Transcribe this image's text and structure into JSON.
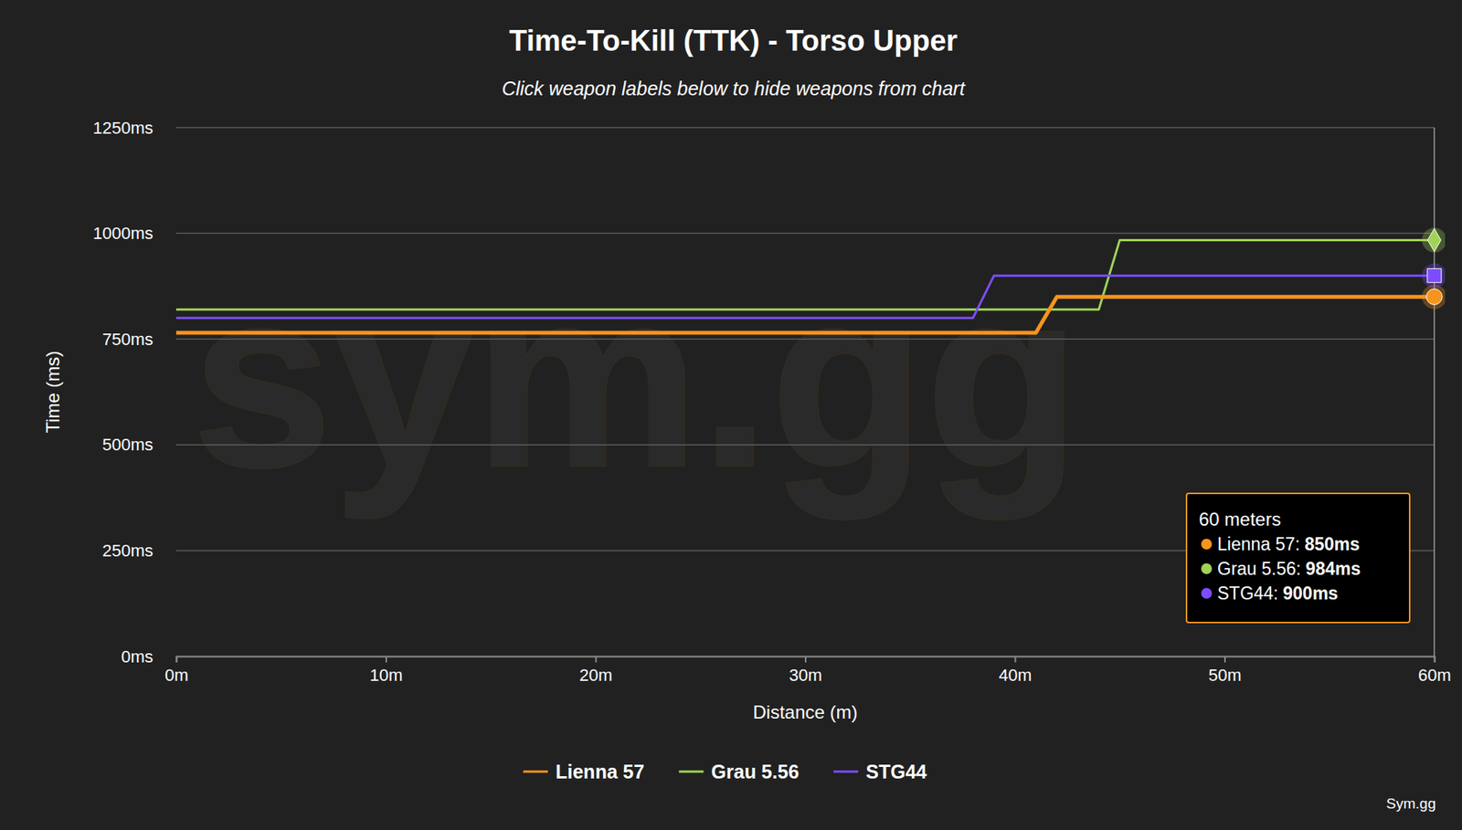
{
  "chart_data": {
    "type": "line",
    "title": "Time-To-Kill (TTK) - Torso Upper",
    "subtitle": "Click weapon labels below to hide weapons from chart",
    "x_label": "Distance (m)",
    "y_label": "Time (ms)",
    "watermark": "sym.gg",
    "credit": "Sym.gg",
    "x": [
      0,
      1,
      2,
      3,
      4,
      5,
      6,
      7,
      8,
      9,
      10,
      11,
      12,
      13,
      14,
      15,
      16,
      17,
      18,
      19,
      20,
      21,
      22,
      23,
      24,
      25,
      26,
      27,
      28,
      29,
      30,
      31,
      32,
      33,
      34,
      35,
      36,
      37,
      38,
      39,
      40,
      41,
      42,
      43,
      44,
      45,
      46,
      47,
      48,
      49,
      50,
      51,
      52,
      53,
      54,
      55,
      56,
      57,
      58,
      59,
      60
    ],
    "series": [
      {
        "name": "Lienna 57",
        "color": "#f7941d",
        "marker": "circle",
        "values": [
          765,
          765,
          765,
          765,
          765,
          765,
          765,
          765,
          765,
          765,
          765,
          765,
          765,
          765,
          765,
          765,
          765,
          765,
          765,
          765,
          765,
          765,
          765,
          765,
          765,
          765,
          765,
          765,
          765,
          765,
          765,
          765,
          765,
          765,
          765,
          765,
          765,
          765,
          765,
          765,
          765,
          765,
          850,
          850,
          850,
          850,
          850,
          850,
          850,
          850,
          850,
          850,
          850,
          850,
          850,
          850,
          850,
          850,
          850,
          850,
          850
        ]
      },
      {
        "name": "Grau 5.56",
        "color": "#9fd356",
        "marker": "diamond",
        "values": [
          820,
          820,
          820,
          820,
          820,
          820,
          820,
          820,
          820,
          820,
          820,
          820,
          820,
          820,
          820,
          820,
          820,
          820,
          820,
          820,
          820,
          820,
          820,
          820,
          820,
          820,
          820,
          820,
          820,
          820,
          820,
          820,
          820,
          820,
          820,
          820,
          820,
          820,
          820,
          820,
          820,
          820,
          820,
          820,
          820,
          984,
          984,
          984,
          984,
          984,
          984,
          984,
          984,
          984,
          984,
          984,
          984,
          984,
          984,
          984,
          984
        ]
      },
      {
        "name": "STG44",
        "color": "#7c4dff",
        "marker": "square",
        "values": [
          800,
          800,
          800,
          800,
          800,
          800,
          800,
          800,
          800,
          800,
          800,
          800,
          800,
          800,
          800,
          800,
          800,
          800,
          800,
          800,
          800,
          800,
          800,
          800,
          800,
          800,
          800,
          800,
          800,
          800,
          800,
          800,
          800,
          800,
          800,
          800,
          800,
          800,
          800,
          900,
          900,
          900,
          900,
          900,
          900,
          900,
          900,
          900,
          900,
          900,
          900,
          900,
          900,
          900,
          900,
          900,
          900,
          900,
          900,
          900,
          900
        ]
      }
    ],
    "xlim": [
      0,
      60
    ],
    "xticks": [
      {
        "value": 0,
        "label": "0m"
      },
      {
        "value": 10,
        "label": "10m"
      },
      {
        "value": 20,
        "label": "20m"
      },
      {
        "value": 30,
        "label": "30m"
      },
      {
        "value": 40,
        "label": "40m"
      },
      {
        "value": 50,
        "label": "50m"
      },
      {
        "value": 60,
        "label": "60m"
      }
    ],
    "ylim": [
      0,
      1250
    ],
    "yticks": [
      {
        "value": 0,
        "label": "0ms"
      },
      {
        "value": 250,
        "label": "250ms"
      },
      {
        "value": 500,
        "label": "500ms"
      },
      {
        "value": 750,
        "label": "750ms"
      },
      {
        "value": 1000,
        "label": "1000ms"
      },
      {
        "value": 1250,
        "label": "1250ms"
      }
    ],
    "grid": true,
    "legend": "bottom",
    "tooltip": {
      "title": "60 meters",
      "items": [
        {
          "label": "Lienna 57:",
          "value": "850ms"
        },
        {
          "label": "Grau 5.56:",
          "value": "984ms"
        },
        {
          "label": "STG44:",
          "value": "900ms"
        }
      ]
    }
  }
}
